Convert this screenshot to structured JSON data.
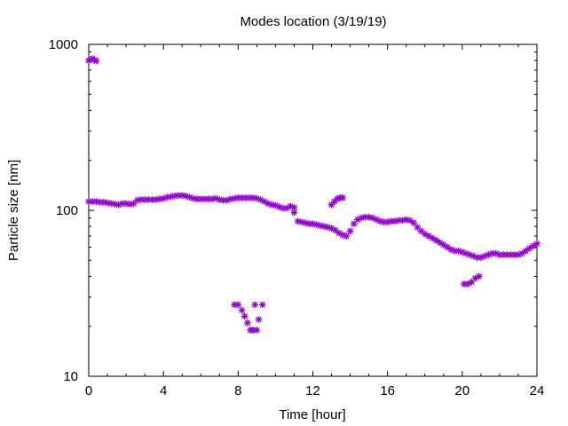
{
  "chart_data": {
    "type": "scatter",
    "title": "Modes location (3/19/19)",
    "xlabel": "Time [hour]",
    "ylabel": "Particle size [nm]",
    "xlim": [
      0,
      24
    ],
    "ylim": [
      10,
      1000
    ],
    "yscale": "log",
    "xticks": [
      0,
      4,
      8,
      12,
      16,
      20,
      24
    ],
    "xtick_labels": [
      "0",
      "4",
      "8",
      "12",
      "16",
      "20",
      "24"
    ],
    "yticks": [
      10,
      100,
      1000
    ],
    "ytick_labels": [
      "10",
      "100",
      "1000"
    ],
    "grid": false,
    "legend": "none",
    "marker_color": "#9400D3",
    "series": [
      {
        "x": [
          0,
          0.1,
          0.2,
          0.3,
          0.4
        ],
        "y": [
          800,
          810,
          820,
          805,
          795
        ]
      },
      {
        "x": [
          0,
          0.2,
          0.4,
          0.6,
          0.8,
          1.0,
          1.2,
          1.4,
          1.6,
          1.8,
          2.0,
          2.2,
          2.4,
          2.6,
          2.8,
          3.0,
          3.2,
          3.4,
          3.6,
          3.8,
          4.0,
          4.2,
          4.4,
          4.6,
          4.8,
          5.0,
          5.2,
          5.4,
          5.6,
          5.8,
          6.0,
          6.2,
          6.4,
          6.6,
          6.8,
          7.0,
          7.2,
          7.4,
          7.6,
          7.8,
          8.0,
          8.2,
          8.4,
          8.6,
          8.8,
          9.0,
          9.2,
          9.4,
          9.6,
          9.8,
          10.0,
          10.2,
          10.4,
          10.6,
          10.8,
          11.0
        ],
        "y": [
          113,
          113,
          113,
          112,
          112,
          111,
          110,
          109,
          108,
          110,
          110,
          109,
          110,
          115,
          116,
          116,
          116,
          116,
          116,
          117,
          118,
          120,
          121,
          122,
          123,
          123,
          122,
          120,
          118,
          117,
          117,
          117,
          117,
          117,
          118,
          116,
          115,
          115,
          117,
          118,
          119,
          119,
          119,
          119,
          119,
          118,
          116,
          113,
          110,
          108,
          107,
          105,
          103,
          103,
          106,
          104
        ]
      },
      {
        "x": [
          11.0,
          11.2,
          11.4,
          11.6,
          11.8,
          12.0,
          12.2,
          12.4,
          12.6,
          12.8,
          13.0,
          13.2,
          13.4,
          13.6,
          13.8,
          14.0,
          14.2,
          14.4,
          14.6,
          14.8,
          15.0,
          15.2,
          15.4,
          15.6,
          15.8,
          16.0,
          16.2,
          16.4,
          16.6,
          16.8,
          17.0,
          17.2,
          17.4,
          17.6,
          17.8,
          18.0,
          18.2,
          18.4,
          18.6,
          18.8,
          19.0,
          19.2,
          19.4,
          19.6,
          19.8,
          20.0,
          20.2,
          20.4,
          20.6,
          20.8,
          21.0,
          21.2,
          21.4,
          21.6,
          21.8,
          22.0,
          22.2,
          22.4,
          22.6,
          22.8,
          23.0,
          23.2,
          23.4,
          23.6,
          23.8,
          24.0
        ],
        "y": [
          97,
          86,
          85,
          84,
          83,
          83,
          82,
          81,
          80,
          79,
          78,
          76,
          73,
          71,
          70,
          75,
          83,
          88,
          90,
          91,
          91,
          90,
          88,
          86,
          85,
          85,
          86,
          86,
          87,
          87,
          88,
          87,
          84,
          79,
          75,
          72,
          70,
          68,
          66,
          64,
          62,
          60,
          58,
          57,
          57,
          56,
          55,
          54,
          53,
          52,
          52,
          53,
          54,
          55,
          55,
          54,
          54,
          54,
          54,
          54,
          54,
          55,
          57,
          59,
          61,
          63
        ]
      },
      {
        "x": [
          13.0,
          13.15,
          13.3,
          13.45,
          13.6
        ],
        "y": [
          108,
          113,
          117,
          119,
          119
        ]
      },
      {
        "x": [
          7.8,
          8.0,
          8.2,
          8.35,
          8.5,
          8.65,
          8.8,
          9.0,
          9.1
        ],
        "y": [
          27,
          27,
          25,
          23,
          21,
          19,
          19,
          19,
          22
        ]
      },
      {
        "x": [
          8.9,
          9.3
        ],
        "y": [
          27,
          27
        ]
      },
      {
        "x": [
          20.1,
          20.3,
          20.5,
          20.7,
          20.9
        ],
        "y": [
          36,
          36,
          37,
          39,
          40
        ]
      }
    ]
  }
}
